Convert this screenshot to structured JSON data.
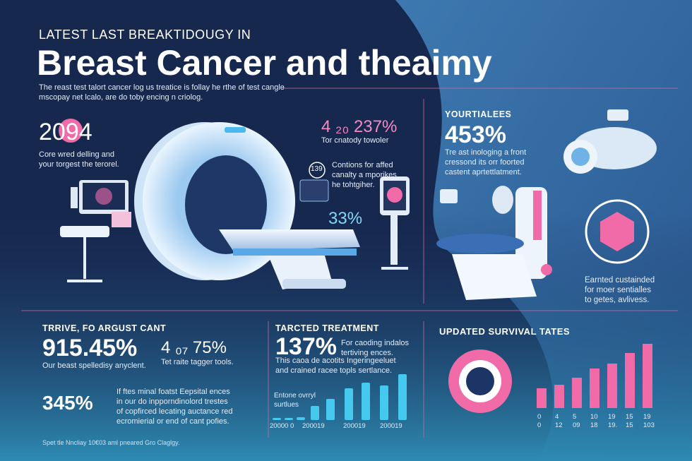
{
  "header": {
    "kicker": "LATEST LAST BREAKTIDOUGY IN",
    "title": "Breast Cancer and theaimy",
    "subtitle": [
      "The reast test talort cancer log us treatice is follay he rthe of test cangle",
      "mscopay net lcalo, are do toby encing n criolog."
    ]
  },
  "left_stat": {
    "value": "2094",
    "text": [
      "Core wred delling and",
      "your torgest the terorel."
    ]
  },
  "callouts": {
    "top": {
      "value": "4 ₂₀ 237%",
      "text": "Tor cnatody towoler"
    },
    "badge": "139",
    "middle": [
      "Contions for affed",
      "canalty a mporikes",
      "he tohtgiher."
    ],
    "bottom": "33%"
  },
  "right_top": {
    "heading": "YOURTIALEES",
    "value": "453%",
    "text": [
      "Tre ast inologing a front",
      "cressond its orr foorted",
      "castent aprtettlatment."
    ]
  },
  "right_middle": {
    "text": [
      "Earnted custainded",
      "for moer sentialles",
      "to getes, avlivess."
    ]
  },
  "bottom_left": {
    "heading": "TRRIVE, FO ARGUST CANT",
    "value": "915.45%",
    "text": "Our beast spelledisy anyclent.",
    "side_value": "4 ₀₇ 75%",
    "side_text": "Tet raite tagger tools.",
    "value2": "345%",
    "text2": [
      "If ftes minal foatst Eepsital ences",
      "in our do inpporndinolord trestes",
      "of copfirced lecating auctance red",
      "ecromierial or end of cant pofies."
    ]
  },
  "treatment": {
    "heading": "TARCTED TREATMENT",
    "value": "137%",
    "text": [
      "For caoding indalos",
      "tertiving ences."
    ],
    "text2": [
      "This caoa de acotits Ingeringeeluet",
      "and crained racee topls sertlance."
    ],
    "caption": [
      "Entone ovrryl",
      "surtlues"
    ],
    "labels": [
      "20000 0",
      "200019",
      "200019",
      "200019"
    ],
    "values": [
      3,
      3,
      4,
      20,
      30,
      45,
      53,
      49,
      65
    ]
  },
  "survival": {
    "heading": "UPDATED SURVIVAL TATES",
    "labels_top": [
      "0",
      "4",
      "5",
      "10",
      "19",
      "15",
      "19"
    ],
    "labels_bottom": [
      "0",
      "12",
      "09",
      "18",
      "19.",
      "15",
      "103"
    ],
    "values": [
      28,
      33,
      43,
      56,
      63,
      78,
      91
    ]
  },
  "footer": "Spet tle Nncliay 10€03 aml pneared Gro Claglgy."
}
